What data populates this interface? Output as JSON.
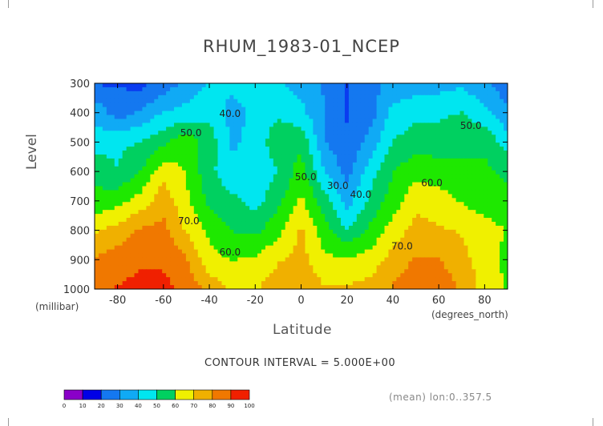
{
  "page": {
    "title": "RHUM_1983-01_NCEP",
    "contour_interval": "CONTOUR INTERVAL = 5.000E+00",
    "mean_note": "(mean) lon:0..357.5"
  },
  "chart_data": {
    "type": "heatmap",
    "subtype": "filled-contour",
    "title": "RHUM_1983-01_NCEP",
    "xlabel": "Latitude",
    "xunit": "(degrees_north)",
    "ylabel": "Level",
    "yunit": "(millibar)",
    "xlim": [
      -90,
      90
    ],
    "ylim": [
      1000,
      300
    ],
    "x_ticks": [
      -80,
      -60,
      -40,
      -20,
      0,
      20,
      40,
      60,
      80
    ],
    "y_ticks": [
      300,
      400,
      500,
      600,
      700,
      800,
      900,
      1000
    ],
    "contour_interval": 5,
    "colorbar": {
      "levels": [
        0,
        10,
        20,
        30,
        40,
        50,
        60,
        70,
        80,
        90,
        100
      ],
      "colors": [
        "#8a00c8",
        "#0000e6",
        "#0a3cf0",
        "#1478f0",
        "#10aaf5",
        "#00e6f0",
        "#00d060",
        "#1ee800",
        "#f0f000",
        "#f0b000",
        "#f07800",
        "#f02000",
        "#ff0000"
      ]
    },
    "contour_labels": [
      {
        "text": "40.0",
        "lat": -31,
        "lev": 415
      },
      {
        "text": "50.0",
        "lat": -48,
        "lev": 480
      },
      {
        "text": "50.0",
        "lat": 2,
        "lev": 630
      },
      {
        "text": "30.0",
        "lat": 16,
        "lev": 660
      },
      {
        "text": "40.0",
        "lat": 26,
        "lev": 690
      },
      {
        "text": "60.0",
        "lat": 57,
        "lev": 650
      },
      {
        "text": "50.0",
        "lat": 74,
        "lev": 455
      },
      {
        "text": "70.0",
        "lat": -49,
        "lev": 780
      },
      {
        "text": "60.0",
        "lat": -31,
        "lev": 885
      },
      {
        "text": "70.0",
        "lat": 44,
        "lev": 865
      }
    ],
    "lat_grid": [
      -90,
      -80,
      -70,
      -60,
      -50,
      -40,
      -30,
      -20,
      -10,
      0,
      10,
      20,
      30,
      40,
      50,
      60,
      70,
      80,
      90
    ],
    "lev_grid": [
      300,
      400,
      500,
      600,
      700,
      800,
      900,
      1000
    ],
    "values": [
      [
        20,
        20,
        18,
        24,
        32,
        38,
        40,
        40,
        38,
        34,
        28,
        20,
        26,
        32,
        32,
        34,
        36,
        30,
        24
      ],
      [
        35,
        25,
        30,
        38,
        40,
        44,
        34,
        40,
        44,
        40,
        30,
        20,
        25,
        40,
        44,
        44,
        46,
        40,
        30
      ],
      [
        42,
        44,
        46,
        52,
        60,
        50,
        36,
        40,
        52,
        52,
        30,
        22,
        32,
        46,
        50,
        50,
        52,
        52,
        42
      ],
      [
        52,
        46,
        54,
        68,
        62,
        48,
        40,
        40,
        46,
        58,
        38,
        26,
        42,
        54,
        60,
        58,
        56,
        56,
        52
      ],
      [
        56,
        60,
        66,
        76,
        64,
        52,
        48,
        42,
        52,
        64,
        50,
        34,
        48,
        58,
        68,
        66,
        62,
        58,
        58
      ],
      [
        70,
        74,
        80,
        82,
        70,
        60,
        54,
        52,
        60,
        72,
        58,
        46,
        56,
        66,
        74,
        72,
        70,
        66,
        62
      ],
      [
        80,
        84,
        86,
        86,
        80,
        66,
        62,
        64,
        70,
        74,
        64,
        64,
        66,
        74,
        80,
        80,
        74,
        66,
        60
      ],
      [
        85,
        88,
        90,
        90,
        85,
        76,
        70,
        70,
        76,
        78,
        72,
        72,
        74,
        80,
        86,
        84,
        78,
        68,
        62
      ]
    ]
  }
}
